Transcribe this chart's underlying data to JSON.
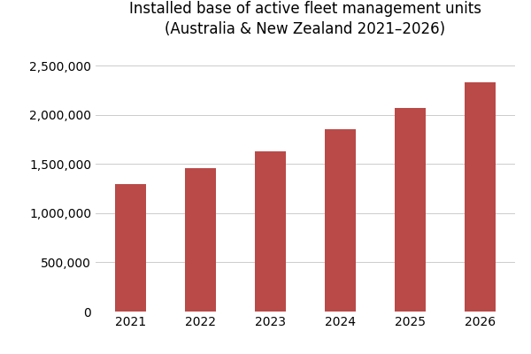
{
  "title_line1": "Installed base of active fleet management units",
  "title_line2": "(Australia & New Zealand 2021–2026)",
  "categories": [
    "2021",
    "2022",
    "2023",
    "2024",
    "2025",
    "2026"
  ],
  "values": [
    1300000,
    1460000,
    1630000,
    1850000,
    2070000,
    2330000
  ],
  "bar_color": "#b94a48",
  "ylim": [
    0,
    2700000
  ],
  "yticks": [
    0,
    500000,
    1000000,
    1500000,
    2000000,
    2500000
  ],
  "background_color": "#ffffff",
  "title_fontsize": 12,
  "tick_fontsize": 10,
  "bar_width": 0.45
}
